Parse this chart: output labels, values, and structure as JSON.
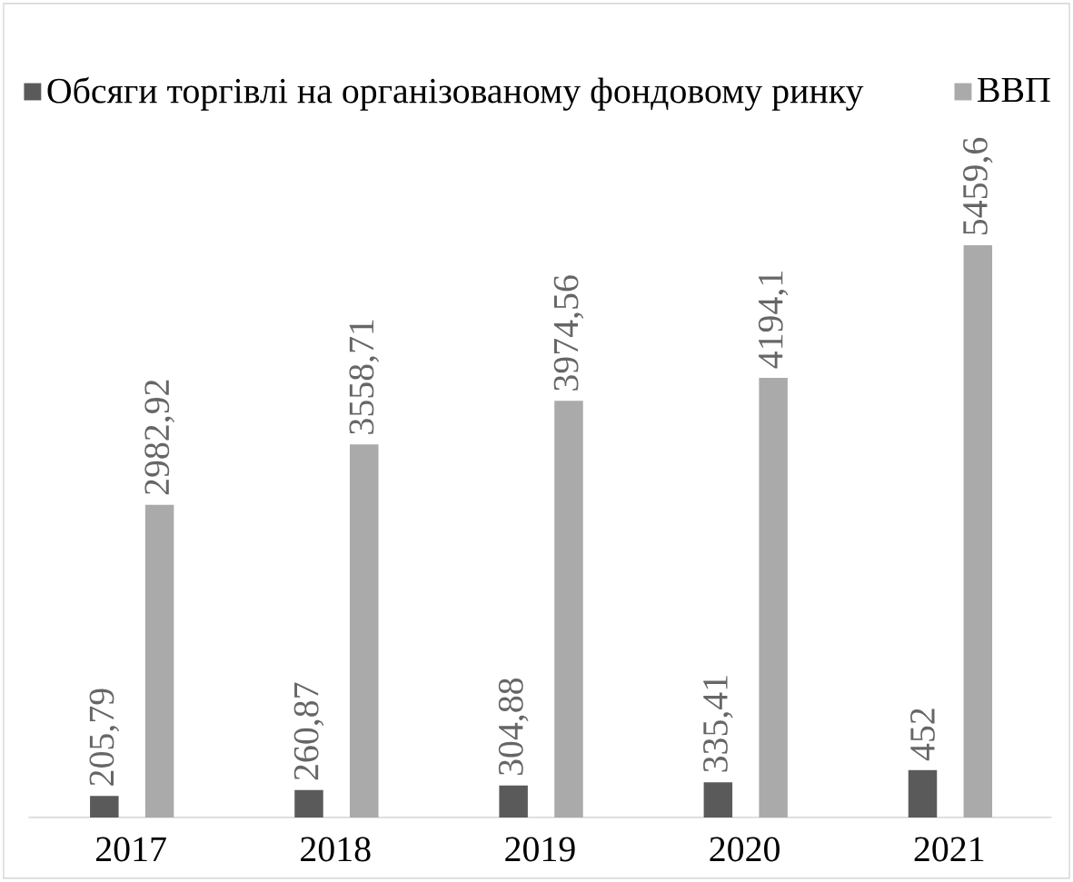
{
  "chart_data": {
    "type": "bar",
    "categories": [
      "2017",
      "2018",
      "2019",
      "2020",
      "2021"
    ],
    "series": [
      {
        "name": "Обсяги торгівлі на організованому фондовому ринку",
        "color": "#5a5a5a",
        "values": [
          205.79,
          260.87,
          304.88,
          335.41,
          452
        ],
        "value_labels": [
          "205,79",
          "260,87",
          "304,88",
          "335,41",
          "452"
        ]
      },
      {
        "name": "ВВП",
        "color": "#aaaaaa",
        "values": [
          2982.92,
          3558.71,
          3974.56,
          4194.1,
          5459.6
        ],
        "value_labels": [
          "2982,92",
          "3558,71",
          "3974,56",
          "4194,1",
          "5459,6"
        ]
      }
    ],
    "legend": "top",
    "grid": false
  }
}
